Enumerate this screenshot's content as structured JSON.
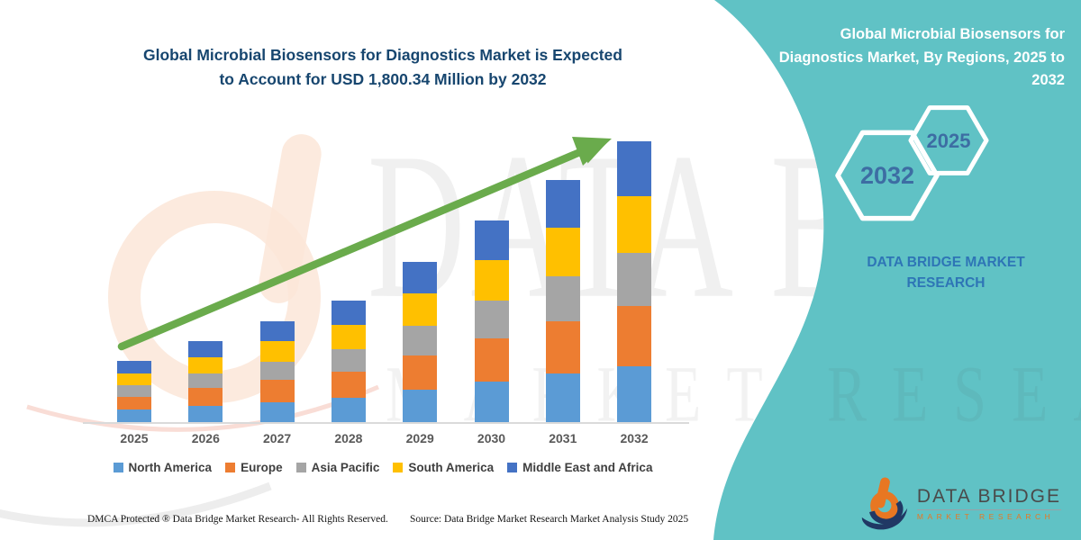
{
  "page": {
    "background": "#ffffff",
    "accent_teal": "#60C2C5",
    "arrow_green": "#6AAB4C"
  },
  "left": {
    "title_line1": "Global Microbial Biosensors for Diagnostics Market is Expected",
    "title_line2": "to Account for USD 1,800.34 Million by 2032",
    "footer_left": "DMCA Protected ® Data Bridge Market Research-  All Rights Reserved.",
    "footer_source": "Source: Data Bridge Market Research  Market Analysis Study 2025"
  },
  "right_panel": {
    "title": "Global Microbial Biosensors for Diagnostics Market, By Regions, 2025 to 2032",
    "hexagon_large_label": "2032",
    "hexagon_small_label": "2025",
    "brand_text": "DATA BRIDGE MARKET RESEARCH"
  },
  "logo": {
    "name": "DATA BRIDGE",
    "subtitle": "MARKET RESEARCH"
  },
  "watermarks": {
    "big_text": "DATA BRIDGE",
    "mid_text": "MARKET RESEARCH"
  },
  "chart_data": {
    "type": "bar",
    "stacked": true,
    "title": "Global Microbial Biosensors for Diagnostics Market is Expected to Account for USD 1,800.34 Million by 2032",
    "unit": "USD Million",
    "categories": [
      "2025",
      "2026",
      "2027",
      "2028",
      "2029",
      "2030",
      "2031",
      "2032"
    ],
    "series": [
      {
        "name": "North America",
        "color": "#5B9BD5",
        "values": [
          78,
          104,
          129,
          156,
          205,
          258,
          310,
          360
        ]
      },
      {
        "name": "Europe",
        "color": "#ED7D31",
        "values": [
          84,
          112,
          139,
          168,
          221,
          278,
          334,
          387
        ]
      },
      {
        "name": "Asia Pacific",
        "color": "#A5A5A5",
        "values": [
          73,
          97,
          120,
          145,
          191,
          240,
          289,
          335
        ]
      },
      {
        "name": "South America",
        "color": "#FFC000",
        "values": [
          79,
          105,
          131,
          157,
          207,
          261,
          314,
          364
        ]
      },
      {
        "name": "Middle East and Africa",
        "color": "#4472C4",
        "values": [
          78,
          101,
          127,
          153,
          203,
          255,
          305,
          354.34
        ]
      }
    ],
    "totals": [
      392,
      519,
      646,
      779,
      1027,
      1292,
      1552,
      1800.34
    ],
    "highlight_value_2032": "USD 1,800.34 Million",
    "xlabel": "",
    "ylabel": "",
    "grid": false,
    "legend_position": "bottom"
  }
}
